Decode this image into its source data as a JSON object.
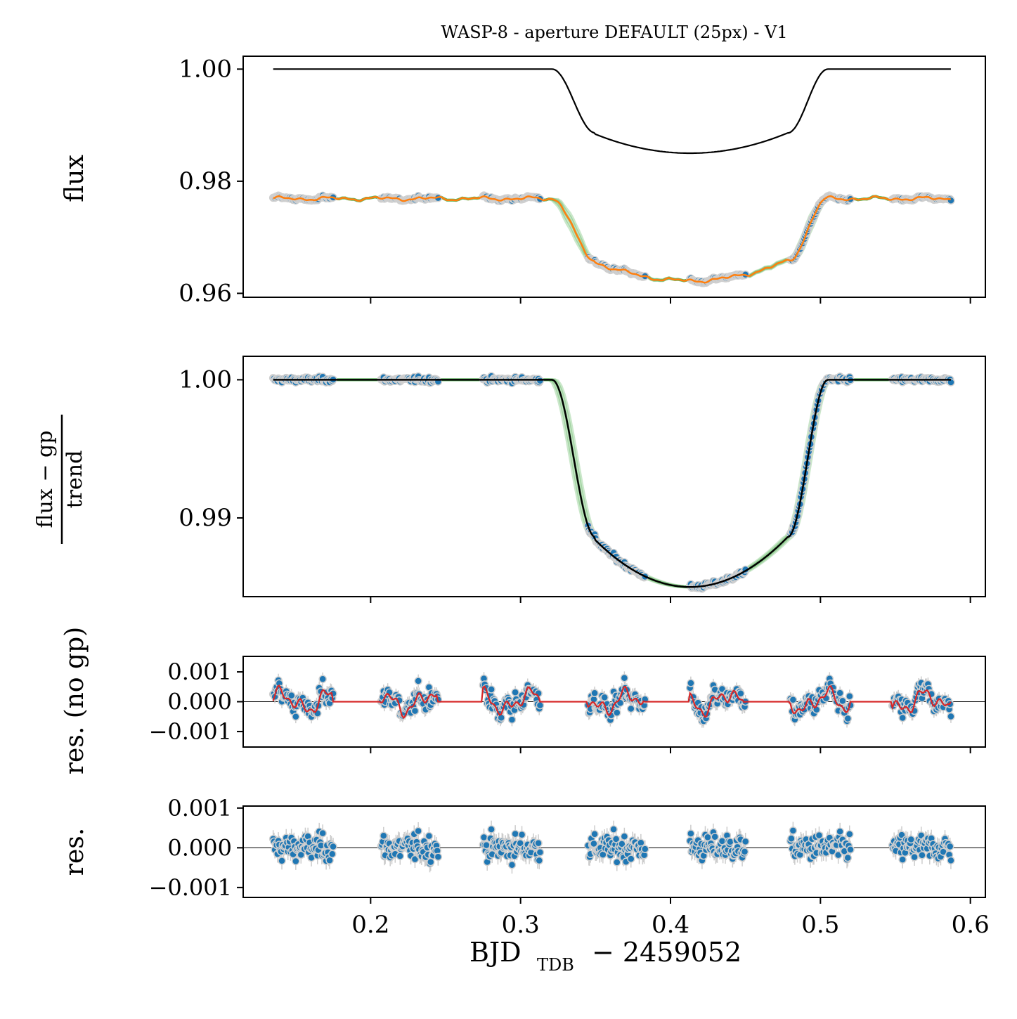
{
  "colors": {
    "data_point": "#1f77b4",
    "data_edge": "#cfcfcf",
    "model": "#000000",
    "gp_model": "#ff7f0e",
    "samples": "#2ca02c",
    "residual_gp": "#d62728",
    "errorbar": "#cccccc"
  },
  "chart_data": {
    "type": "scatter",
    "title": "WASP-8 - aperture DEFAULT (25px) - V1",
    "xlabel_main": "BJD",
    "xlabel_sub": "TDB",
    "xlabel_rest": " − 2459052",
    "xlim": [
      0.115,
      0.61
    ],
    "xticks": [
      0.2,
      0.3,
      0.4,
      0.5,
      0.6
    ],
    "xtick_labels": [
      "0.2",
      "0.3",
      "0.4",
      "0.5",
      "0.6"
    ],
    "observation_blocks": [
      [
        0.135,
        0.175
      ],
      [
        0.207,
        0.245
      ],
      [
        0.275,
        0.313
      ],
      [
        0.345,
        0.383
      ],
      [
        0.413,
        0.45
      ],
      [
        0.48,
        0.52
      ],
      [
        0.548,
        0.587
      ]
    ],
    "transit": {
      "t1": 0.321,
      "t2": 0.35,
      "t3": 0.478,
      "t4": 0.505,
      "center": 0.413,
      "depth_floor": 0.985,
      "depth_edge": 0.9886
    },
    "panels": [
      {
        "id": "flux",
        "ylabel": "flux",
        "ylim": [
          0.9593,
          1.0023
        ],
        "yticks": [
          0.96,
          0.98,
          1.0
        ],
        "ytick_labels": [
          "0.96",
          "0.98",
          "1.00"
        ],
        "series": [
          "observed flux",
          "GP + trend model",
          "posterior samples",
          "transit model"
        ]
      },
      {
        "id": "detrended",
        "ylabel_num": "flux − gp",
        "ylabel_den": "trend",
        "ylim": [
          0.9843,
          1.0017
        ],
        "yticks": [
          0.99,
          1.0
        ],
        "ytick_labels": [
          "0.99",
          "1.00"
        ],
        "series": [
          "detrended flux",
          "posterior samples",
          "transit model"
        ]
      },
      {
        "id": "res_nogp",
        "ylabel": "res. (no gp)",
        "ylim": [
          -0.00152,
          0.00152
        ],
        "yticks": [
          -0.001,
          0.0,
          0.001
        ],
        "ytick_labels": [
          "−0.001",
          "0.000",
          "0.001"
        ],
        "series": [
          "residuals without GP",
          "GP prediction"
        ]
      },
      {
        "id": "res",
        "ylabel": "res.",
        "ylim": [
          -0.00125,
          0.00105
        ],
        "yticks": [
          -0.001,
          0.0,
          0.001
        ],
        "ytick_labels": [
          "−0.001",
          "0.000",
          "0.001"
        ],
        "series": [
          "residuals"
        ]
      }
    ]
  }
}
